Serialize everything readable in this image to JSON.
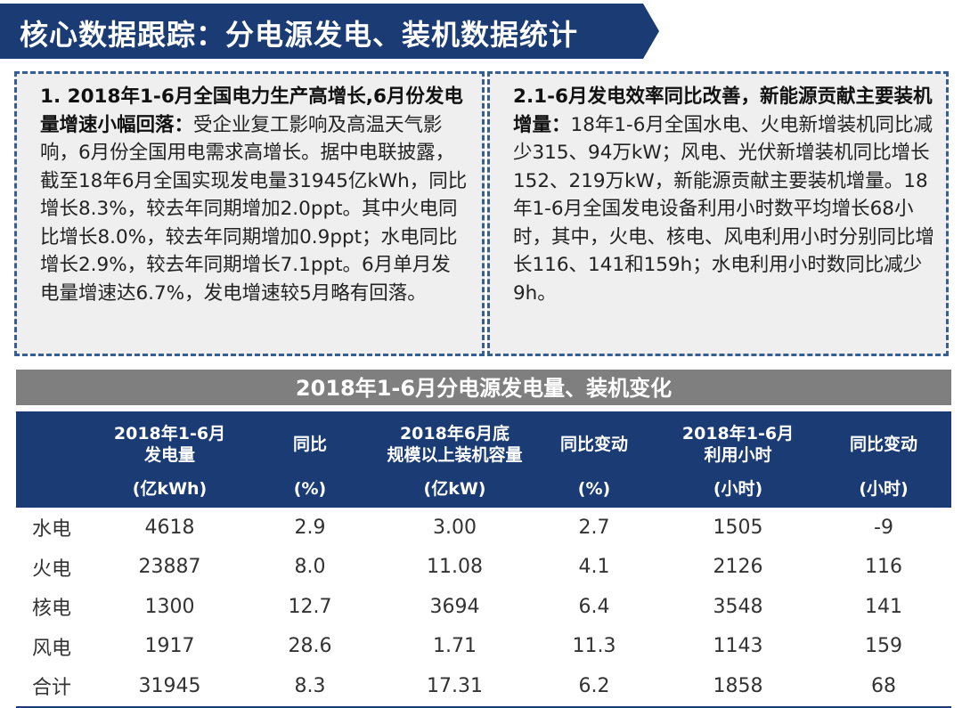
{
  "header": {
    "title": "核心数据跟踪：分电源发电、装机数据统计",
    "accent_color": "#1a3b73"
  },
  "panels": [
    {
      "lead": "1. 2018年1-6月全国电力生产高增长,6月份发电量增速小幅回落：",
      "body": "受企业复工影响及高温天气影响，6月份全国用电需求高增长。据中电联披露，截至18年6月全国实现发电量31945亿kWh，同比增长8.3%，较去年同期增加2.0ppt。其中火电同比增长8.0%，较去年同期增加0.9ppt；水电同比增长2.9%，较去年同期增长7.1ppt。6月单月发电量增速达6.7%，发电增速较5月略有回落。"
    },
    {
      "lead": "2.1-6月发电效率同比改善，新能源贡献主要装机增量：",
      "body": "18年1-6月全国水电、火电新增装机同比减少315、94万kW；风电、光伏新增装机同比增长152、219万kW，新能源贡献主要装机增量。18年1-6月全国发电设备利用小时数平均增长68小时，其中，火电、核电、风电利用小时分别同比增长116、141和159h；水电利用小时数同比减少9h。"
    }
  ],
  "table": {
    "title": "2018年1-6月分电源发电量、装机变化",
    "headers": [
      {
        "name": "",
        "unit": ""
      },
      {
        "name": "2018年1-6月\n发电量",
        "unit": "(亿kWh)"
      },
      {
        "name": "同比",
        "unit": "(%)"
      },
      {
        "name": "2018年6月底\n规模以上装机容量",
        "unit": "(亿kW)"
      },
      {
        "name": "同比变动",
        "unit": "(%)"
      },
      {
        "name": "2018年1-6月\n利用小时",
        "unit": "(小时)"
      },
      {
        "name": "同比变动",
        "unit": "(小时)"
      }
    ],
    "rows": [
      [
        "水电",
        "4618",
        "2.9",
        "3.00",
        "2.7",
        "1505",
        "-9"
      ],
      [
        "火电",
        "23887",
        "8.0",
        "11.08",
        "4.1",
        "2126",
        "116"
      ],
      [
        "核电",
        "1300",
        "12.7",
        "3694",
        "6.4",
        "3548",
        "141"
      ],
      [
        "风电",
        "1917",
        "28.6",
        "1.71",
        "11.3",
        "1143",
        "159"
      ],
      [
        "合计",
        "31945",
        "8.3",
        "17.31",
        "6.2",
        "1858",
        "68"
      ]
    ]
  }
}
